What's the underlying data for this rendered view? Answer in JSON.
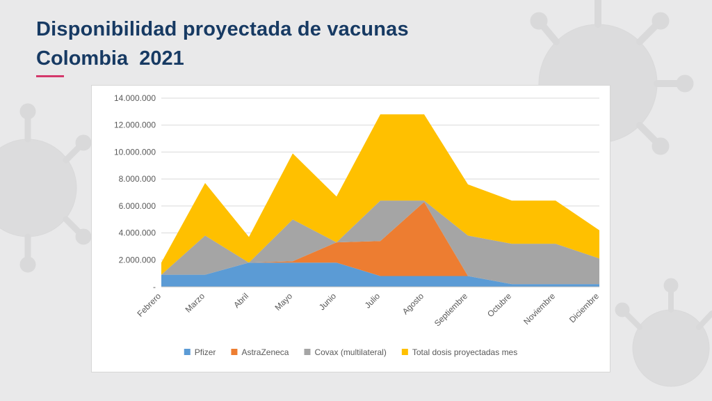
{
  "slide": {
    "title": "Disponibilidad proyectada de vacunas",
    "subtitle": "Colombia  2021",
    "accent_color": "#d4386b",
    "title_color": "#173a63",
    "background_decoration": "virus-icon"
  },
  "chart_data": {
    "type": "area",
    "title": "",
    "xlabel": "",
    "ylabel": "",
    "categories": [
      "Febrero",
      "Marzo",
      "Abril",
      "Mayo",
      "Junio",
      "Julio",
      "Agosto",
      "Septiembre",
      "Octubre",
      "Noviembre",
      "Diciembre"
    ],
    "y_ticks": [
      "-",
      "2.000.000",
      "4.000.000",
      "6.000.000",
      "8.000.000",
      "10.000.000",
      "12.000.000",
      "14.000.000"
    ],
    "ylim": [
      0,
      14000000
    ],
    "grid": true,
    "legend_position": "bottom",
    "series": [
      {
        "name": "Pfizer",
        "color": "#5b9bd5",
        "values": [
          900000,
          900000,
          1800000,
          1800000,
          1800000,
          800000,
          800000,
          800000,
          200000,
          200000,
          200000
        ]
      },
      {
        "name": "AstraZeneca",
        "color": "#ed7d31",
        "values": [
          0,
          0,
          0,
          100000,
          1500000,
          2600000,
          5500000,
          0,
          0,
          0,
          0
        ]
      },
      {
        "name": "Covax (multilateral)",
        "color": "#a5a5a5",
        "values": [
          0,
          2900000,
          0,
          3100000,
          0,
          3000000,
          100000,
          3000000,
          3000000,
          3000000,
          1900000
        ]
      },
      {
        "name": "Total dosis proyectadas mes",
        "color": "#ffc000",
        "values": [
          900000,
          3900000,
          1900000,
          4900000,
          3400000,
          6400000,
          6400000,
          3800000,
          3200000,
          3200000,
          2100000
        ]
      }
    ]
  }
}
